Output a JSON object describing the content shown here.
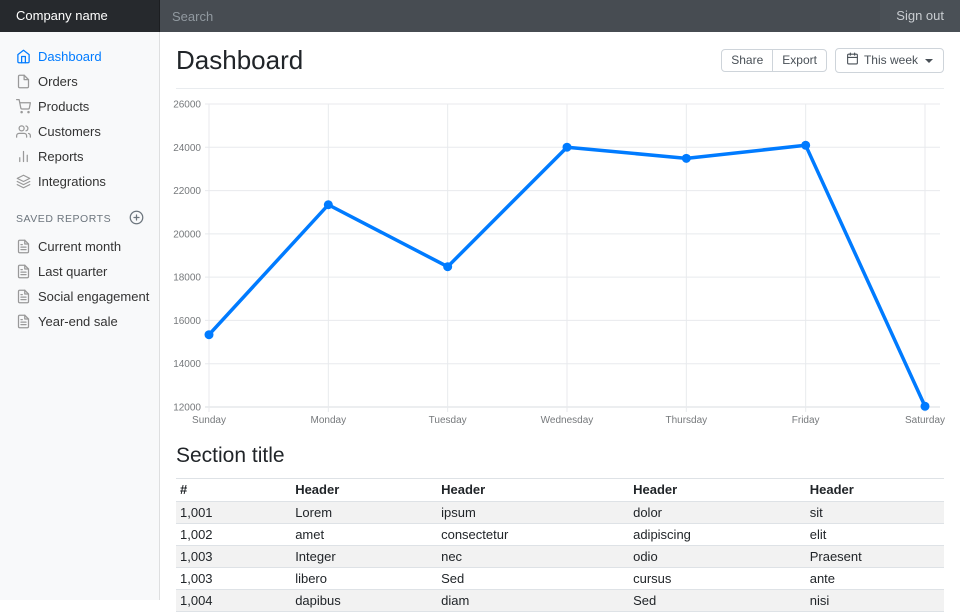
{
  "colors": {
    "accent": "#007bff",
    "navbar_bg": "#343a40",
    "grid": "#e8eaed",
    "tick_text": "#76797c"
  },
  "topbar": {
    "brand": "Company name",
    "search_placeholder": "Search",
    "sign_out": "Sign out"
  },
  "sidebar": {
    "items": [
      {
        "label": "Dashboard",
        "icon": "home-icon",
        "active": true
      },
      {
        "label": "Orders",
        "icon": "file-icon",
        "active": false
      },
      {
        "label": "Products",
        "icon": "shopping-cart-icon",
        "active": false
      },
      {
        "label": "Customers",
        "icon": "users-icon",
        "active": false
      },
      {
        "label": "Reports",
        "icon": "bar-chart-icon",
        "active": false
      },
      {
        "label": "Integrations",
        "icon": "layers-icon",
        "active": false
      }
    ],
    "saved_reports_heading": "Saved reports",
    "add_icon": "plus-circle-icon",
    "saved_items": [
      {
        "label": "Current month",
        "icon": "file-text-icon"
      },
      {
        "label": "Last quarter",
        "icon": "file-text-icon"
      },
      {
        "label": "Social engagement",
        "icon": "file-text-icon"
      },
      {
        "label": "Year-end sale",
        "icon": "file-text-icon"
      }
    ]
  },
  "main": {
    "title": "Dashboard",
    "toolbar": {
      "share_label": "Share",
      "export_label": "Export",
      "period_label": "This week",
      "period_icon": "calendar-icon"
    },
    "section_title": "Section title"
  },
  "chart_data": {
    "type": "line",
    "title": "",
    "xlabel": "",
    "ylabel": "",
    "categories": [
      "Sunday",
      "Monday",
      "Tuesday",
      "Wednesday",
      "Thursday",
      "Friday",
      "Saturday"
    ],
    "values": [
      15339,
      21345,
      18483,
      24003,
      23489,
      24092,
      12034
    ],
    "ylim": [
      12000,
      26000
    ],
    "yticks": [
      12000,
      14000,
      16000,
      18000,
      20000,
      22000,
      24000,
      26000
    ],
    "grid": true,
    "legend": false,
    "line_color": "#007bff",
    "point_color": "#007bff"
  },
  "table": {
    "columns": [
      "#",
      "Header",
      "Header",
      "Header",
      "Header"
    ],
    "col_widths": [
      "15%",
      "19%",
      "25%",
      "23%",
      "18%"
    ],
    "rows": [
      [
        "1,001",
        "Lorem",
        "ipsum",
        "dolor",
        "sit"
      ],
      [
        "1,002",
        "amet",
        "consectetur",
        "adipiscing",
        "elit"
      ],
      [
        "1,003",
        "Integer",
        "nec",
        "odio",
        "Praesent"
      ],
      [
        "1,003",
        "libero",
        "Sed",
        "cursus",
        "ante"
      ],
      [
        "1,004",
        "dapibus",
        "diam",
        "Sed",
        "nisi"
      ]
    ]
  }
}
